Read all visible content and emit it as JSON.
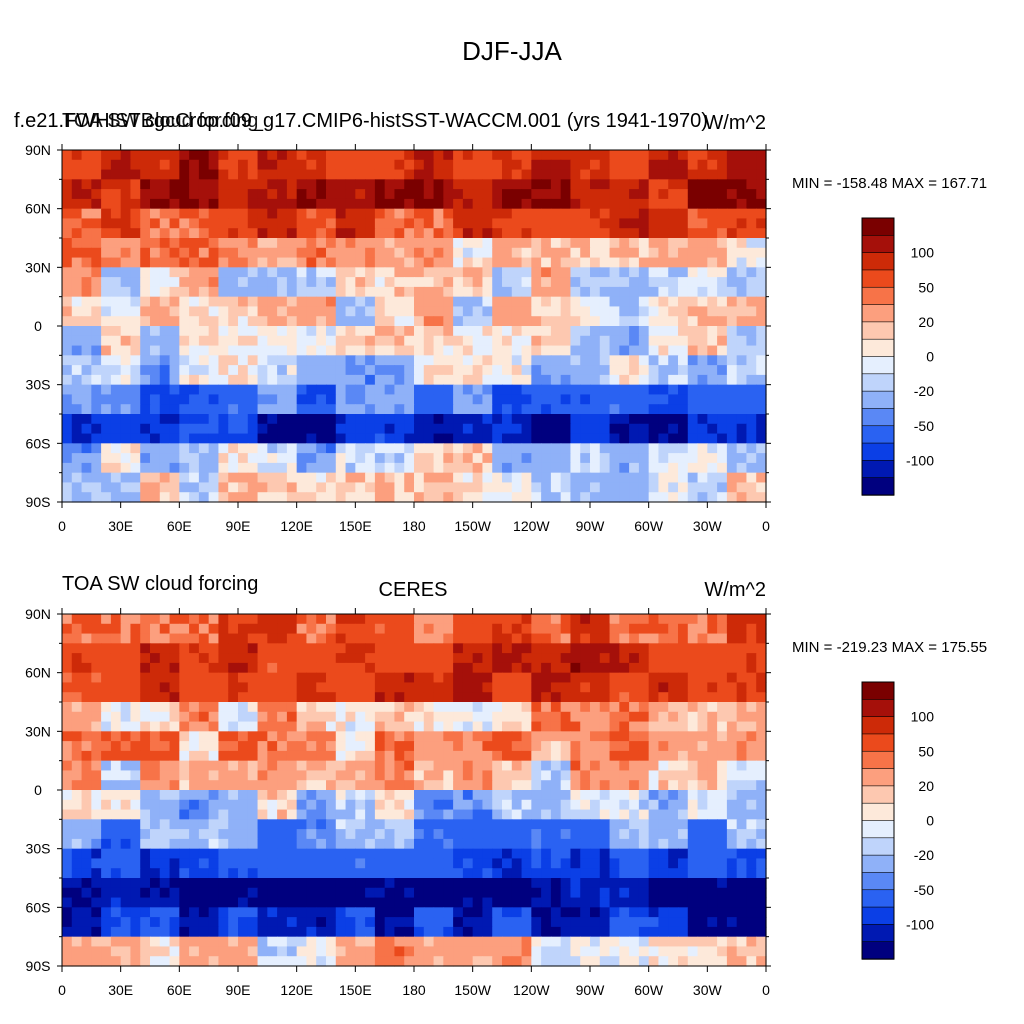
{
  "main_title": "DJF-JJA",
  "colors": [
    "#00007f",
    "#0019b2",
    "#0b3fe6",
    "#2a62f2",
    "#5a88f5",
    "#8fb1f8",
    "#bfd4fb",
    "#e5effe",
    "#fde9da",
    "#fdc8b0",
    "#fc9f7e",
    "#f77348",
    "#eb4a1c",
    "#cd2a08",
    "#a5100a",
    "#7a0000"
  ],
  "colorbar_levels": [
    -150,
    -120,
    -100,
    -80,
    -50,
    -40,
    -20,
    -10,
    0,
    10,
    20,
    40,
    50,
    80,
    100,
    120,
    150
  ],
  "panels": [
    {
      "left_title": "f.e21.FWHISTBgcCrop.f09_g17.CMIP6-histSST-WACCM.001 (yrs 1941-1970)",
      "overlay_left": "TOA SW cloud forcing",
      "center_title": "",
      "right_title": "W/m^2",
      "minmax": "MIN = -158.48 MAX = 167.71",
      "lat_ticks": [
        "90N",
        "60N",
        "30N",
        "0",
        "30S",
        "60S",
        "90S"
      ],
      "lon_ticks": [
        "0",
        "30E",
        "60E",
        "90E",
        "120E",
        "150E",
        "180",
        "150W",
        "120W",
        "90W",
        "60W",
        "30W",
        "0"
      ],
      "colorbar_labels": [
        "100",
        "50",
        "20",
        "0",
        "-20",
        "-50",
        "-100"
      ]
    },
    {
      "left_title": "TOA SW cloud forcing",
      "overlay_left": "",
      "center_title": "CERES",
      "right_title": "W/m^2",
      "minmax": "MIN = -219.23 MAX = 175.55",
      "lat_ticks": [
        "90N",
        "60N",
        "30N",
        "0",
        "30S",
        "60S",
        "90S"
      ],
      "lon_ticks": [
        "0",
        "30E",
        "60E",
        "90E",
        "120E",
        "150E",
        "180",
        "150W",
        "120W",
        "90W",
        "60W",
        "30W",
        "0"
      ],
      "colorbar_labels": [
        "100",
        "50",
        "20",
        "0",
        "-20",
        "-50",
        "-100"
      ]
    }
  ],
  "chart_data": [
    {
      "type": "heatmap",
      "title": "DJF-JJA",
      "subtitle": "f.e21.FWHISTBgcCrop.f09_g17.CMIP6-histSST-WACCM.001 (yrs 1941-1970)",
      "units": "W/m^2",
      "variable": "TOA SW cloud forcing",
      "min": -158.48,
      "max": 167.71,
      "xlim": [
        0,
        360
      ],
      "ylim": [
        -90,
        90
      ],
      "levels": [
        -150,
        -120,
        -100,
        -80,
        -50,
        -40,
        -20,
        -10,
        0,
        10,
        20,
        40,
        50,
        80,
        100,
        120,
        150
      ],
      "lat_bands": [
        {
          "lat_range": [
            75,
            90
          ],
          "value": 90
        },
        {
          "lat_range": [
            60,
            75
          ],
          "value": 100
        },
        {
          "lat_range": [
            45,
            60
          ],
          "value": 70
        },
        {
          "lat_range": [
            30,
            45
          ],
          "value": 20
        },
        {
          "lat_range": [
            15,
            30
          ],
          "value": 5
        },
        {
          "lat_range": [
            0,
            15
          ],
          "value": 5
        },
        {
          "lat_range": [
            -15,
            0
          ],
          "value": -10
        },
        {
          "lat_range": [
            -30,
            -15
          ],
          "value": -15
        },
        {
          "lat_range": [
            -45,
            -30
          ],
          "value": -60
        },
        {
          "lat_range": [
            -60,
            -45
          ],
          "value": -110
        },
        {
          "lat_range": [
            -75,
            -60
          ],
          "value": -15
        },
        {
          "lat_range": [
            -90,
            -75
          ],
          "value": -5
        }
      ]
    },
    {
      "type": "heatmap",
      "title": "CERES",
      "subtitle": "TOA SW cloud forcing",
      "units": "W/m^2",
      "min": -219.23,
      "max": 175.55,
      "xlim": [
        0,
        360
      ],
      "ylim": [
        -90,
        90
      ],
      "levels": [
        -150,
        -120,
        -100,
        -80,
        -50,
        -40,
        -20,
        -10,
        0,
        10,
        20,
        40,
        50,
        80,
        100,
        120,
        150
      ],
      "lat_bands": [
        {
          "lat_range": [
            75,
            90
          ],
          "value": 60
        },
        {
          "lat_range": [
            60,
            75
          ],
          "value": 90
        },
        {
          "lat_range": [
            45,
            60
          ],
          "value": 80
        },
        {
          "lat_range": [
            30,
            45
          ],
          "value": 20
        },
        {
          "lat_range": [
            15,
            30
          ],
          "value": 30
        },
        {
          "lat_range": [
            0,
            15
          ],
          "value": 15
        },
        {
          "lat_range": [
            -15,
            0
          ],
          "value": -20
        },
        {
          "lat_range": [
            -30,
            -15
          ],
          "value": -40
        },
        {
          "lat_range": [
            -45,
            -30
          ],
          "value": -80
        },
        {
          "lat_range": [
            -60,
            -45
          ],
          "value": -130
        },
        {
          "lat_range": [
            -75,
            -60
          ],
          "value": -100
        },
        {
          "lat_range": [
            -90,
            -75
          ],
          "value": 10
        }
      ]
    }
  ]
}
